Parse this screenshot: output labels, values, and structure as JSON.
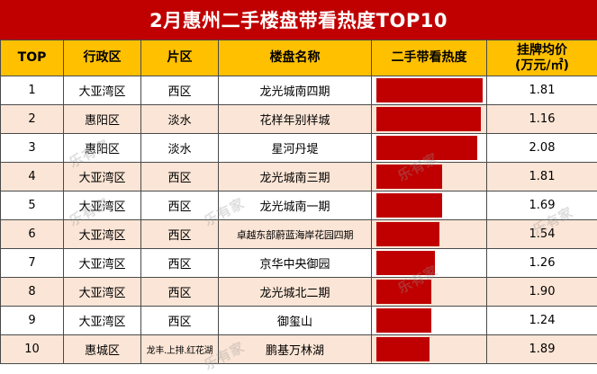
{
  "title": "2月惠州二手楼盘带看热度TOP10",
  "watermark": "乐有家",
  "headers": {
    "rank": "TOP",
    "district": "行政区",
    "area": "片区",
    "name": "楼盘名称",
    "heat": "二手带看热度",
    "price_line1": "挂牌均价",
    "price_line2": "(万元/㎡)"
  },
  "colors": {
    "title_bg": "#c00000",
    "header_bg": "#ffc000",
    "bar": "#c00000",
    "alt_row": "#fbe5d6"
  },
  "chart_data": {
    "type": "bar",
    "categories": [
      "龙光城南四期",
      "花样年别样城",
      "星河丹堤",
      "龙光城南三期",
      "龙光城南一期",
      "卓越东部蔚蓝海岸花园四期",
      "京华中央御园",
      "龙光城北二期",
      "御玺山",
      "鹏基万林湖"
    ],
    "values": [
      100,
      98,
      95,
      62,
      62,
      59,
      55,
      52,
      52,
      50
    ],
    "xlim": [
      0,
      100
    ]
  },
  "rows": [
    {
      "rank": "1",
      "district": "大亚湾区",
      "area": "西区",
      "name": "龙光城南四期",
      "price": "1.81"
    },
    {
      "rank": "2",
      "district": "惠阳区",
      "area": "淡水",
      "name": "花样年别样城",
      "price": "1.16"
    },
    {
      "rank": "3",
      "district": "惠阳区",
      "area": "淡水",
      "name": "星河丹堤",
      "price": "2.08"
    },
    {
      "rank": "4",
      "district": "大亚湾区",
      "area": "西区",
      "name": "龙光城南三期",
      "price": "1.81"
    },
    {
      "rank": "5",
      "district": "大亚湾区",
      "area": "西区",
      "name": "龙光城南一期",
      "price": "1.69"
    },
    {
      "rank": "6",
      "district": "大亚湾区",
      "area": "西区",
      "name": "卓越东部蔚蓝海岸花园四期",
      "price": "1.54"
    },
    {
      "rank": "7",
      "district": "大亚湾区",
      "area": "西区",
      "name": "京华中央御园",
      "price": "1.26"
    },
    {
      "rank": "8",
      "district": "大亚湾区",
      "area": "西区",
      "name": "龙光城北二期",
      "price": "1.90"
    },
    {
      "rank": "9",
      "district": "大亚湾区",
      "area": "西区",
      "name": "御玺山",
      "price": "1.24"
    },
    {
      "rank": "10",
      "district": "惠城区",
      "area": "龙丰.上排.红花湖",
      "name": "鹏基万林湖",
      "price": "1.89"
    }
  ]
}
